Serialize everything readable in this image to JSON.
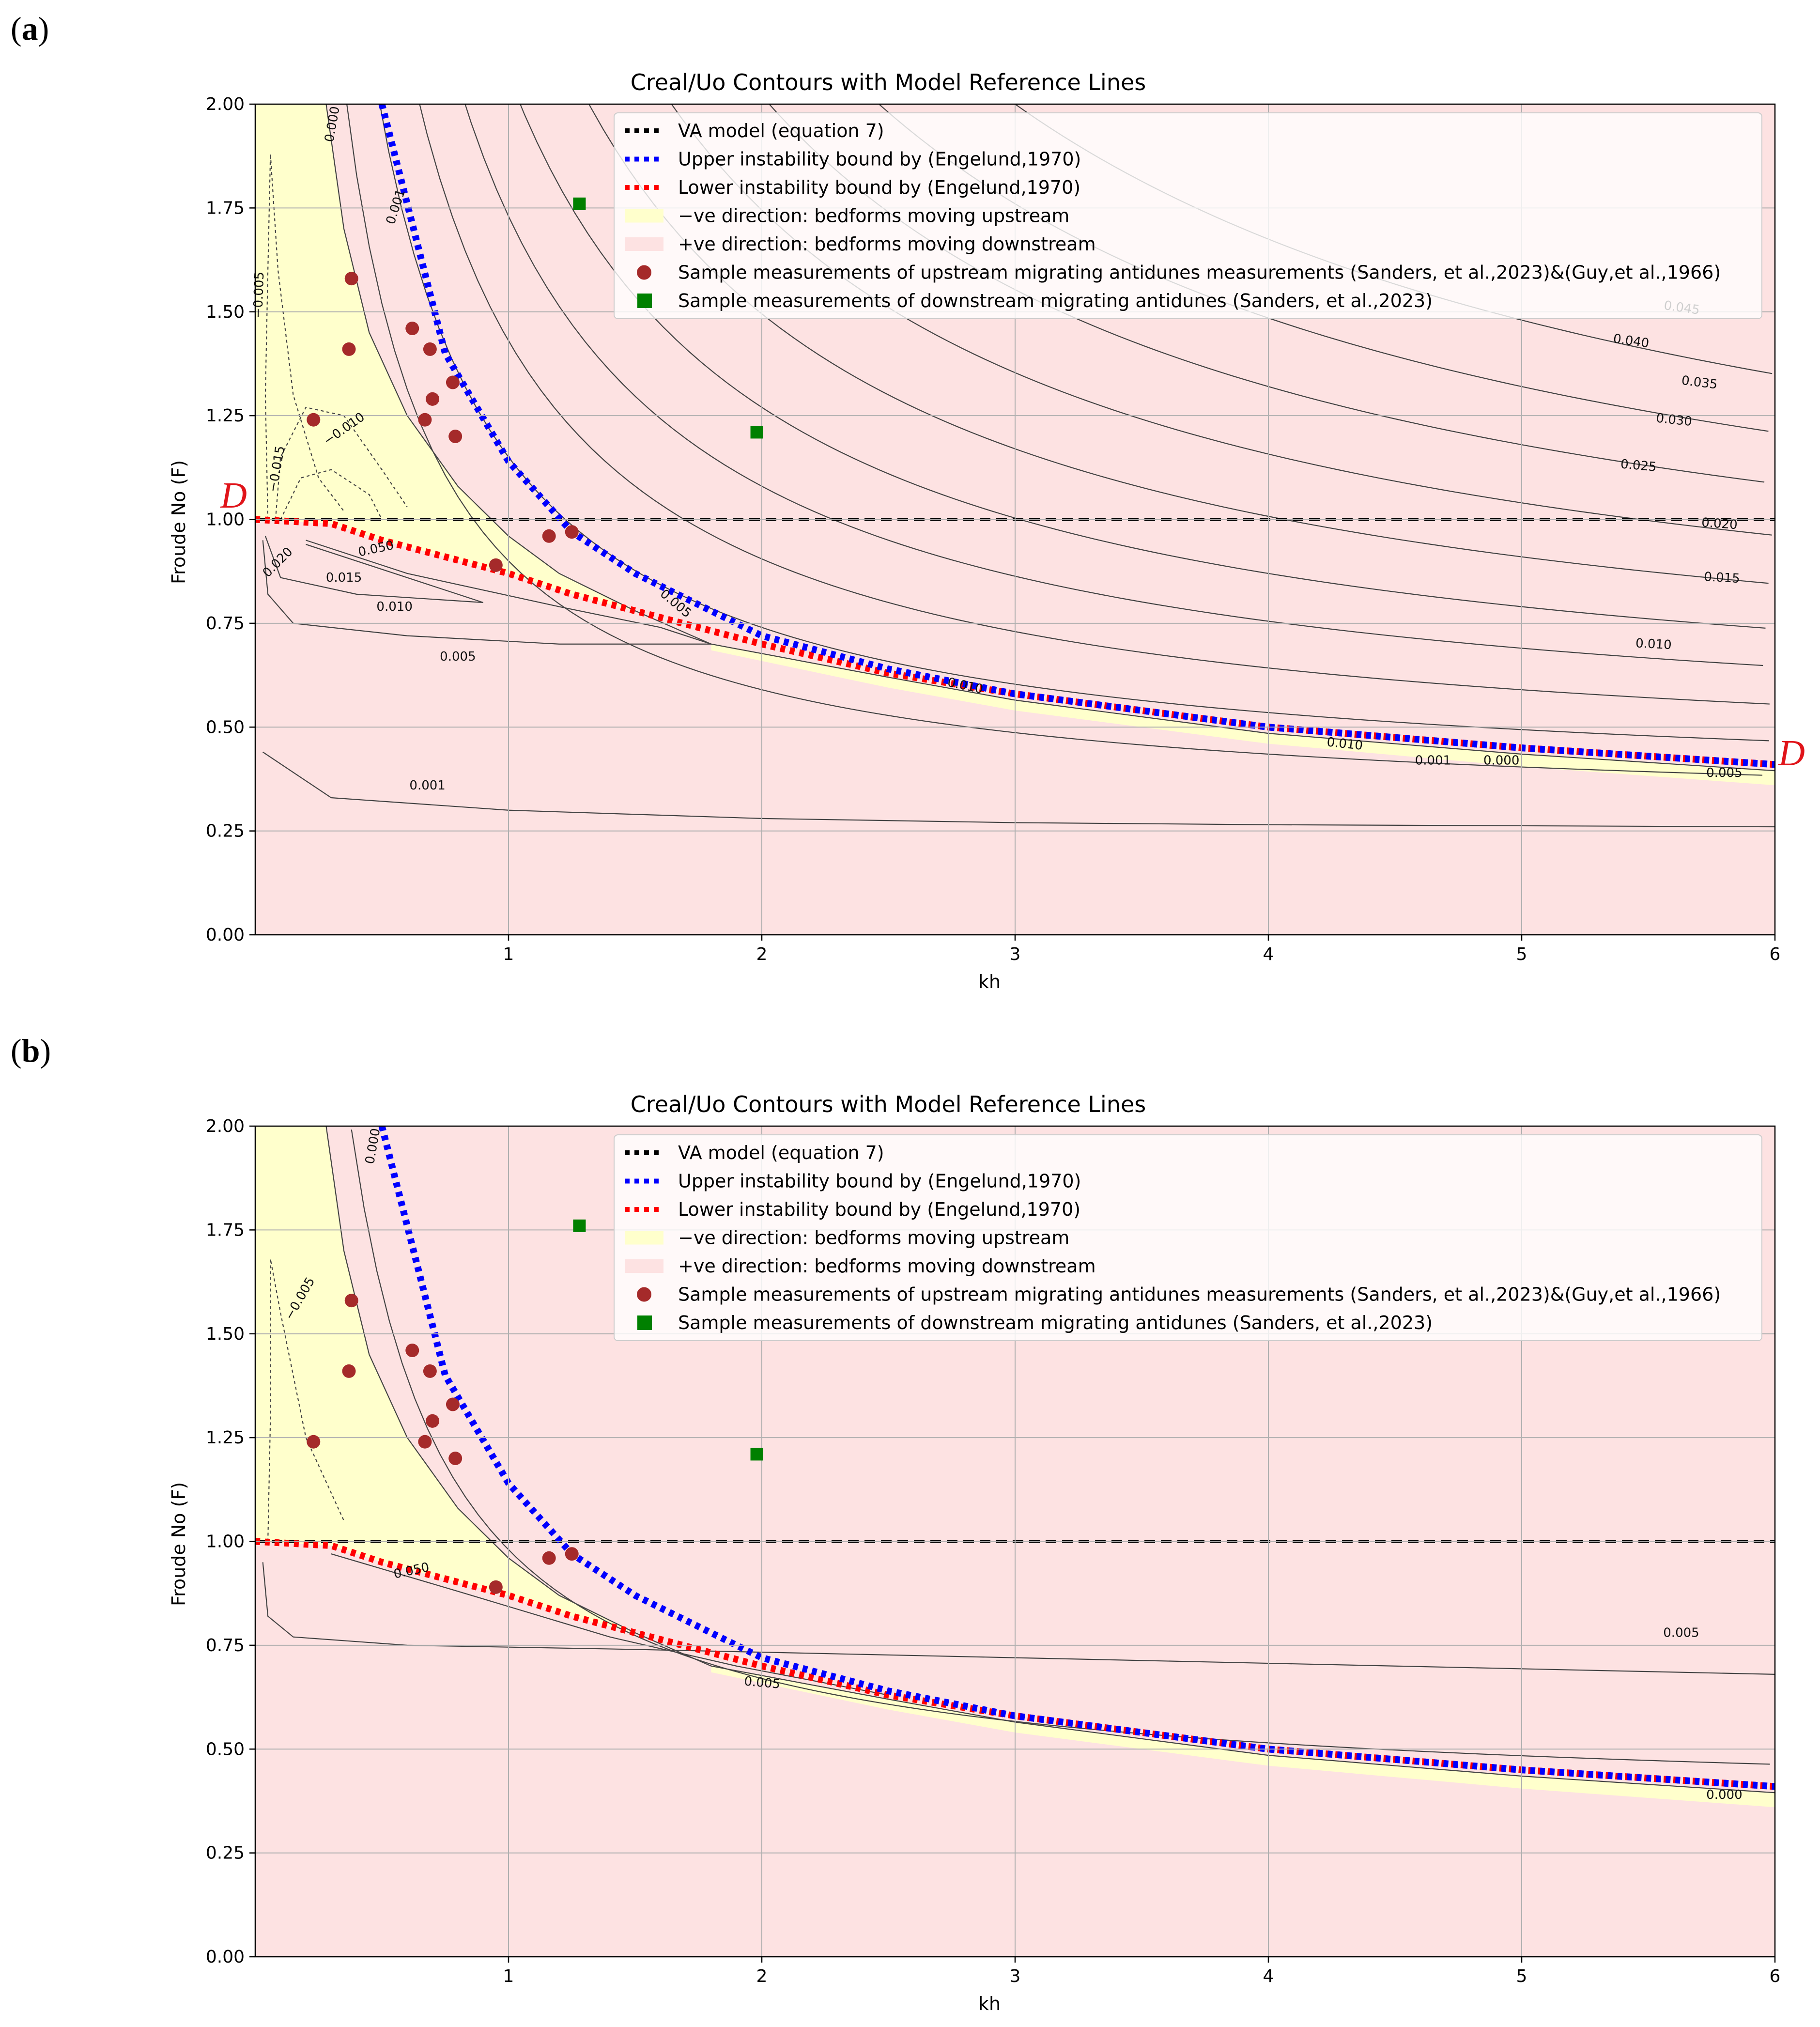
{
  "figure": {
    "panels": [
      {
        "letter_open": "(",
        "letter": "a",
        "letter_close": ")",
        "marker_letter": "D"
      },
      {
        "letter_open": "(",
        "letter": "b",
        "letter_close": ")",
        "marker_letter": ""
      }
    ]
  },
  "colors": {
    "upstream_region": "#ffffcc",
    "downstream_region": "#fde2e2",
    "va_model": "#000000",
    "upper_bound": "#0000ff",
    "lower_bound": "#ff0000",
    "upstream_points": "#a52a2a",
    "downstream_points": "#008000",
    "contour": "#444444",
    "marker_letter": "#e0141a"
  },
  "chart_data": [
    {
      "type": "contour",
      "title": "Creal/Uo Contours with Model Reference Lines",
      "xlabel": "kh",
      "ylabel": "Froude No (F)",
      "xlim": [
        0,
        6
      ],
      "ylim": [
        0,
        2
      ],
      "grid": true,
      "xticks": [
        1,
        2,
        3,
        4,
        5,
        6
      ],
      "xtick_labels": [
        "1",
        "2",
        "3",
        "4",
        "5",
        "6"
      ],
      "yticks": [
        0,
        0.25,
        0.5,
        0.75,
        1.0,
        1.25,
        1.5,
        1.75,
        2.0
      ],
      "ytick_labels": [
        "0.00",
        "0.25",
        "0.50",
        "0.75",
        "1.00",
        "1.25",
        "1.50",
        "1.75",
        "2.00"
      ],
      "legend_position": "top-right",
      "legend": [
        {
          "label": "VA model (equation 7)",
          "kind": "dotted-line",
          "color": "#000000"
        },
        {
          "label": "Upper instability bound by (Engelund,1970)",
          "kind": "dotted-line",
          "color": "#0000ff"
        },
        {
          "label": "Lower instability bound by (Engelund,1970)",
          "kind": "dotted-line",
          "color": "#ff0000"
        },
        {
          "label": "−ve direction: bedforms moving upstream",
          "kind": "patch",
          "color": "#ffffcc"
        },
        {
          "label": "+ve direction: bedforms moving downstream",
          "kind": "patch",
          "color": "#fde2e2"
        },
        {
          "label": "Sample measurements of upstream migrating antidunes measurements (Sanders, et al.,2023)&(Guy,et al.,1966)",
          "kind": "circle",
          "color": "#a52a2a"
        },
        {
          "label": "Sample measurements of downstream migrating antidunes (Sanders, et al.,2023)",
          "kind": "square",
          "color": "#008000"
        }
      ],
      "reference_lines": {
        "va_model_F": 1.0,
        "upper_bound": {
          "kh": [
            0.5,
            0.75,
            1.0,
            1.25,
            1.5,
            2.0,
            2.5,
            3.0,
            4.0,
            5.0,
            6.0
          ],
          "F": [
            2.0,
            1.4,
            1.14,
            0.97,
            0.87,
            0.72,
            0.64,
            0.58,
            0.5,
            0.45,
            0.41
          ]
        },
        "lower_bound": {
          "kh": [
            0.0,
            0.3,
            0.5,
            0.75,
            1.0,
            1.25,
            1.5,
            2.0,
            2.5,
            3.0,
            4.0,
            5.0,
            6.0
          ],
          "F": [
            1.0,
            0.99,
            0.95,
            0.91,
            0.87,
            0.82,
            0.78,
            0.7,
            0.63,
            0.58,
            0.5,
            0.45,
            0.41
          ]
        }
      },
      "upstream_points": {
        "kh": [
          0.38,
          0.37,
          0.23,
          0.62,
          0.69,
          0.67,
          0.7,
          0.78,
          0.79,
          0.95,
          1.16,
          1.25
        ],
        "F": [
          1.58,
          1.41,
          1.24,
          1.46,
          1.41,
          1.24,
          1.29,
          1.33,
          1.2,
          0.89,
          0.96,
          0.97
        ]
      },
      "downstream_points": {
        "kh": [
          1.28,
          1.98
        ],
        "F": [
          1.76,
          1.21
        ]
      },
      "contour_levels": [
        "0.000",
        "0.001",
        "0.005",
        "0.010",
        "0.015",
        "0.020",
        "0.025",
        "0.030",
        "0.035",
        "0.040",
        "0.045",
        "−0.005",
        "−0.010",
        "−0.015",
        "0.050"
      ],
      "contour_labels": [
        {
          "text": "0.000",
          "kh": 0.32,
          "F": 1.95,
          "rot": 80
        },
        {
          "text": "0.001",
          "kh": 0.57,
          "F": 1.75,
          "rot": 72
        },
        {
          "text": "−0.005",
          "kh": 0.03,
          "F": 1.54,
          "rot": 88
        },
        {
          "text": "−0.010",
          "kh": 0.36,
          "F": 1.21,
          "rot": 35
        },
        {
          "text": "−0.015",
          "kh": 0.1,
          "F": 1.12,
          "rot": 80
        },
        {
          "text": "0.050",
          "kh": 0.48,
          "F": 0.92,
          "rot": 12
        },
        {
          "text": "0.020",
          "kh": 0.1,
          "F": 0.89,
          "rot": 45
        },
        {
          "text": "0.015",
          "kh": 0.35,
          "F": 0.85,
          "rot": 0
        },
        {
          "text": "0.010",
          "kh": 0.55,
          "F": 0.78,
          "rot": 0
        },
        {
          "text": "0.005",
          "kh": 0.8,
          "F": 0.66,
          "rot": 0
        },
        {
          "text": "0.001",
          "kh": 0.68,
          "F": 0.35,
          "rot": 0
        },
        {
          "text": "0.005",
          "kh": 1.65,
          "F": 0.79,
          "rot": -40
        },
        {
          "text": "0.045",
          "kh": 5.63,
          "F": 1.5,
          "rot": -8
        },
        {
          "text": "0.040",
          "kh": 5.43,
          "F": 1.42,
          "rot": -8
        },
        {
          "text": "0.035",
          "kh": 5.7,
          "F": 1.32,
          "rot": -7
        },
        {
          "text": "0.030",
          "kh": 5.6,
          "F": 1.23,
          "rot": -6
        },
        {
          "text": "0.025",
          "kh": 5.46,
          "F": 1.12,
          "rot": -5
        },
        {
          "text": "0.020",
          "kh": 5.78,
          "F": 0.98,
          "rot": -4
        },
        {
          "text": "0.015",
          "kh": 5.79,
          "F": 0.85,
          "rot": -3
        },
        {
          "text": "0.010",
          "kh": 5.52,
          "F": 0.69,
          "rot": -3
        },
        {
          "text": "0.010",
          "kh": 2.8,
          "F": 0.59,
          "rot": -12
        },
        {
          "text": "0.010",
          "kh": 4.3,
          "F": 0.45,
          "rot": -6
        },
        {
          "text": "0.000",
          "kh": 4.92,
          "F": 0.41,
          "rot": 0
        },
        {
          "text": "0.001",
          "kh": 4.65,
          "F": 0.41,
          "rot": 0
        },
        {
          "text": "0.005",
          "kh": 5.8,
          "F": 0.38,
          "rot": 0
        }
      ]
    },
    {
      "type": "contour",
      "title": "Creal/Uo Contours with Model Reference Lines",
      "xlabel": "kh",
      "ylabel": "Froude No (F)",
      "xlim": [
        0,
        6
      ],
      "ylim": [
        0,
        2
      ],
      "grid": true,
      "xticks": [
        1,
        2,
        3,
        4,
        5,
        6
      ],
      "xtick_labels": [
        "1",
        "2",
        "3",
        "4",
        "5",
        "6"
      ],
      "yticks": [
        0,
        0.25,
        0.5,
        0.75,
        1.0,
        1.25,
        1.5,
        1.75,
        2.0
      ],
      "ytick_labels": [
        "0.00",
        "0.25",
        "0.50",
        "0.75",
        "1.00",
        "1.25",
        "1.50",
        "1.75",
        "2.00"
      ],
      "legend_position": "top-right",
      "legend": [
        {
          "label": "VA model (equation 7)",
          "kind": "dotted-line",
          "color": "#000000"
        },
        {
          "label": "Upper instability bound by (Engelund,1970)",
          "kind": "dotted-line",
          "color": "#0000ff"
        },
        {
          "label": "Lower instability bound by (Engelund,1970)",
          "kind": "dotted-line",
          "color": "#ff0000"
        },
        {
          "label": "−ve direction: bedforms moving upstream",
          "kind": "patch",
          "color": "#ffffcc"
        },
        {
          "label": "+ve direction: bedforms moving downstream",
          "kind": "patch",
          "color": "#fde2e2"
        },
        {
          "label": "Sample measurements of upstream migrating antidunes measurements (Sanders, et al.,2023)&(Guy,et al.,1966)",
          "kind": "circle",
          "color": "#a52a2a"
        },
        {
          "label": "Sample measurements of downstream migrating antidunes (Sanders, et al.,2023)",
          "kind": "square",
          "color": "#008000"
        }
      ],
      "reference_lines": {
        "va_model_F": 1.0,
        "upper_bound": {
          "kh": [
            0.5,
            0.75,
            1.0,
            1.25,
            1.5,
            2.0,
            2.5,
            3.0,
            4.0,
            5.0,
            6.0
          ],
          "F": [
            2.0,
            1.4,
            1.14,
            0.97,
            0.87,
            0.72,
            0.64,
            0.58,
            0.5,
            0.45,
            0.41
          ]
        },
        "lower_bound": {
          "kh": [
            0.0,
            0.3,
            0.5,
            0.75,
            1.0,
            1.25,
            1.5,
            2.0,
            2.5,
            3.0,
            4.0,
            5.0,
            6.0
          ],
          "F": [
            1.0,
            0.99,
            0.95,
            0.91,
            0.87,
            0.82,
            0.78,
            0.7,
            0.63,
            0.58,
            0.5,
            0.45,
            0.41
          ]
        }
      },
      "upstream_points": {
        "kh": [
          0.38,
          0.37,
          0.23,
          0.62,
          0.69,
          0.67,
          0.7,
          0.78,
          0.79,
          0.95,
          1.16,
          1.25
        ],
        "F": [
          1.58,
          1.41,
          1.24,
          1.46,
          1.41,
          1.24,
          1.29,
          1.33,
          1.2,
          0.89,
          0.96,
          0.97
        ]
      },
      "downstream_points": {
        "kh": [
          1.28,
          1.98
        ],
        "F": [
          1.76,
          1.21
        ]
      },
      "contour_levels": [
        "0.000",
        "0.005",
        "−0.005",
        "0.050"
      ],
      "contour_labels": [
        {
          "text": "0.000",
          "kh": 0.48,
          "F": 1.95,
          "rot": 80
        },
        {
          "text": "−0.005",
          "kh": 0.19,
          "F": 1.58,
          "rot": 60
        },
        {
          "text": "0.050",
          "kh": 0.62,
          "F": 0.92,
          "rot": 12
        },
        {
          "text": "0.005",
          "kh": 2.0,
          "F": 0.65,
          "rot": -5
        },
        {
          "text": "0.005",
          "kh": 5.63,
          "F": 0.77,
          "rot": 0
        },
        {
          "text": "0.000",
          "kh": 5.8,
          "F": 0.38,
          "rot": 0
        }
      ]
    }
  ]
}
